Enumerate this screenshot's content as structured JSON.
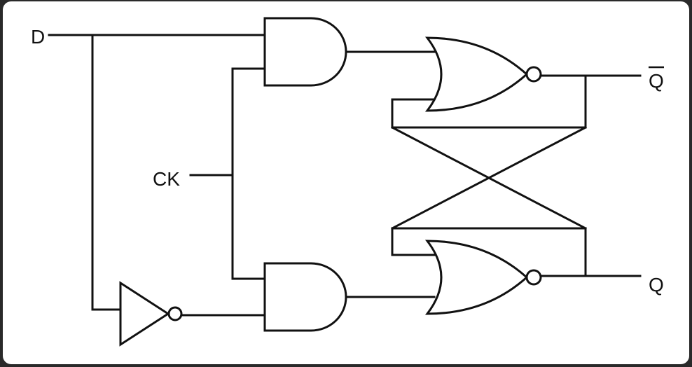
{
  "diagram": {
    "labels": {
      "d": "D",
      "ck": "CK",
      "q_bar": "Q",
      "q": "Q"
    },
    "colors": {
      "background": "#ffffff",
      "ink": "#111111",
      "frame": "#2a2a2a"
    },
    "components": [
      "and-gate-top",
      "and-gate-bottom",
      "nor-gate-top",
      "nor-gate-bottom",
      "inverter"
    ]
  }
}
